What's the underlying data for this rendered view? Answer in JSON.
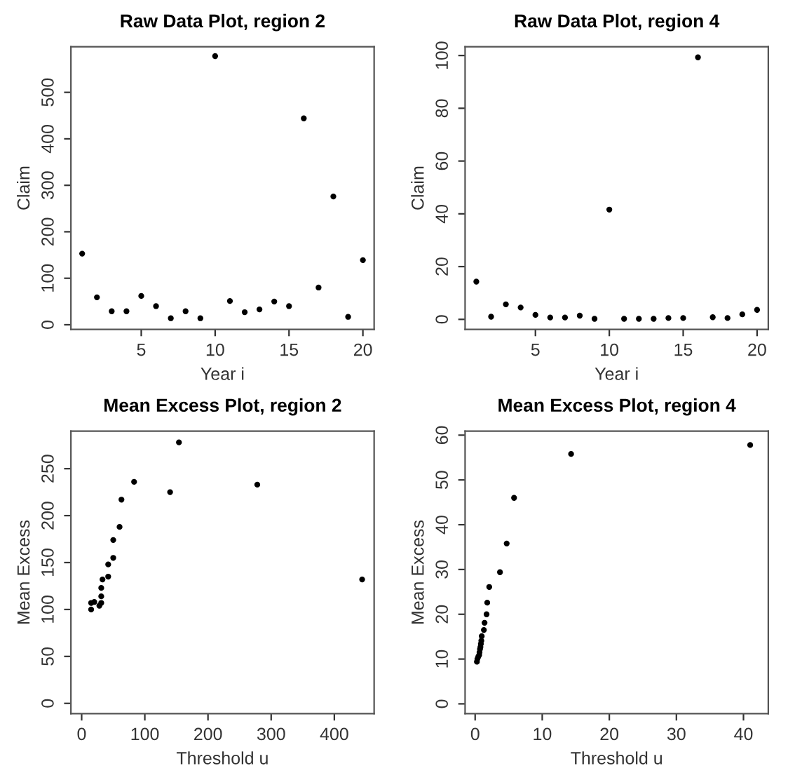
{
  "chart_data": [
    {
      "type": "scatter",
      "title": "Raw Data Plot, region 2",
      "xlabel": "Year i",
      "ylabel": "Claim",
      "marker": "circle",
      "grid": false,
      "x": [
        1,
        2,
        3,
        4,
        5,
        6,
        7,
        8,
        9,
        10,
        11,
        12,
        13,
        14,
        15,
        16,
        17,
        18,
        19,
        20
      ],
      "series": [
        {
          "color": "#000000",
          "values": [
            153,
            59,
            29,
            29,
            62,
            40,
            14,
            29,
            14,
            578,
            51,
            27,
            33,
            50,
            40,
            444,
            80,
            276,
            17,
            139
          ]
        }
      ],
      "xlim": [
        0.24,
        20.76
      ],
      "ylim": [
        -10,
        598
      ],
      "xticks": [
        5,
        10,
        15,
        20
      ],
      "yticks": [
        0,
        100,
        200,
        300,
        400,
        500
      ]
    },
    {
      "type": "scatter",
      "title": "Raw Data Plot, region 4",
      "xlabel": "Year i",
      "ylabel": "Claim",
      "marker": "circle",
      "grid": false,
      "x": [
        1,
        2,
        3,
        4,
        5,
        6,
        7,
        8,
        9,
        10,
        11,
        12,
        13,
        14,
        15,
        16,
        17,
        18,
        19,
        20
      ],
      "series": [
        {
          "color": "#000000",
          "values": [
            14.3,
            1.0,
            5.7,
            4.5,
            1.7,
            0.7,
            0.7,
            1.4,
            0.2,
            41.6,
            0.2,
            0.2,
            0.2,
            0.5,
            0.5,
            99.3,
            0.8,
            0.5,
            1.9,
            3.6
          ]
        }
      ],
      "xlim": [
        0.24,
        20.76
      ],
      "ylim": [
        -3.8,
        103.3
      ],
      "xticks": [
        5,
        10,
        15,
        20
      ],
      "yticks": [
        0,
        20,
        40,
        60,
        80,
        100
      ]
    },
    {
      "type": "scatter",
      "title": "Mean Excess Plot, region 2",
      "xlabel": "Threshold u",
      "ylabel": "Mean Excess",
      "marker": "circle",
      "grid": false,
      "series": [
        {
          "color": "#000000",
          "x": [
            15,
            15,
            20,
            28,
            31,
            31,
            31,
            33,
            42,
            42,
            50,
            50,
            60,
            63,
            83,
            140,
            154,
            278,
            444
          ],
          "values": [
            100,
            107,
            108,
            104,
            107,
            114,
            123,
            132,
            135,
            148,
            155,
            174,
            188,
            217,
            236,
            225,
            278,
            233,
            132
          ]
        }
      ],
      "xlim": [
        -17,
        463
      ],
      "ylim": [
        -11,
        290
      ],
      "xticks": [
        0,
        100,
        200,
        300,
        400
      ],
      "yticks": [
        0,
        50,
        100,
        150,
        200,
        250
      ]
    },
    {
      "type": "scatter",
      "title": "Mean Excess Plot, region 4",
      "xlabel": "Threshold u",
      "ylabel": "Mean Excess",
      "marker": "circle",
      "grid": false,
      "series": [
        {
          "color": "#000000",
          "x": [
            0.26,
            0.33,
            0.46,
            0.6,
            0.65,
            0.72,
            0.79,
            0.85,
            0.92,
            0.98,
            1.3,
            1.4,
            1.7,
            1.8,
            2.1,
            3.7,
            4.7,
            5.8,
            14.3,
            41.0
          ],
          "values": [
            9.4,
            10.0,
            10.5,
            10.9,
            11.5,
            12.2,
            12.7,
            13.4,
            14.1,
            15.1,
            16.5,
            18.1,
            20.0,
            22.6,
            26.1,
            29.4,
            35.8,
            46.0,
            55.8,
            57.8
          ]
        }
      ],
      "xlim": [
        -1.5,
        43.7
      ],
      "ylim": [
        -2.2,
        60.9
      ],
      "xticks": [
        0,
        10,
        20,
        30,
        40
      ],
      "yticks": [
        0,
        10,
        20,
        30,
        40,
        50,
        60
      ]
    }
  ]
}
